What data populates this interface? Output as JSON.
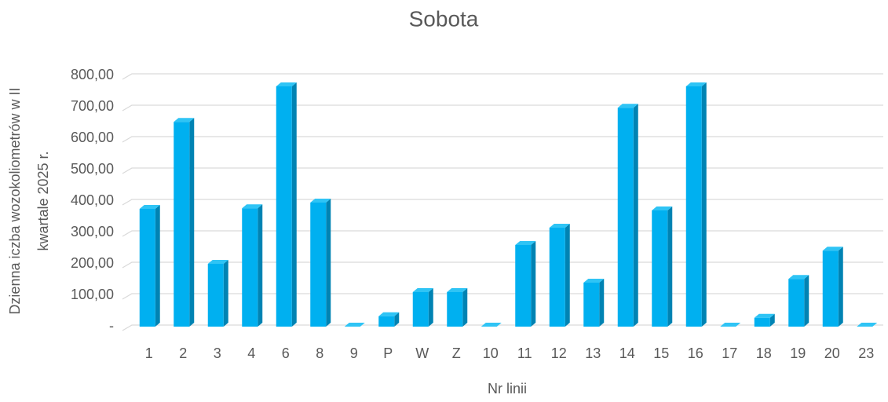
{
  "chart_data": {
    "type": "bar3d",
    "title": "Sobota",
    "xlabel": "Nr linii",
    "ylabel": [
      "Dzienna iczba wozokoliometrów w II",
      "kwartale 2025 r."
    ],
    "categories": [
      "1",
      "2",
      "3",
      "4",
      "6",
      "8",
      "9",
      "P",
      "W",
      "Z",
      "10",
      "11",
      "12",
      "13",
      "14",
      "15",
      "16",
      "17",
      "18",
      "19",
      "20",
      "23"
    ],
    "values": [
      375,
      652,
      200,
      377,
      765,
      395,
      0,
      33,
      110,
      110,
      0,
      260,
      315,
      140,
      697,
      370,
      765,
      0,
      28,
      152,
      242,
      0
    ],
    "color": "#00b0f0",
    "ylim": [
      0,
      800
    ],
    "yticks": [
      {
        "value": 0,
        "label": "-"
      },
      {
        "value": 100,
        "label": "100,00"
      },
      {
        "value": 200,
        "label": "200,00"
      },
      {
        "value": 300,
        "label": "300,00"
      },
      {
        "value": 400,
        "label": "400,00"
      },
      {
        "value": 500,
        "label": "500,00"
      },
      {
        "value": 600,
        "label": "600,00"
      },
      {
        "value": 700,
        "label": "700,00"
      },
      {
        "value": 800,
        "label": "800,00"
      }
    ],
    "grid": true
  }
}
